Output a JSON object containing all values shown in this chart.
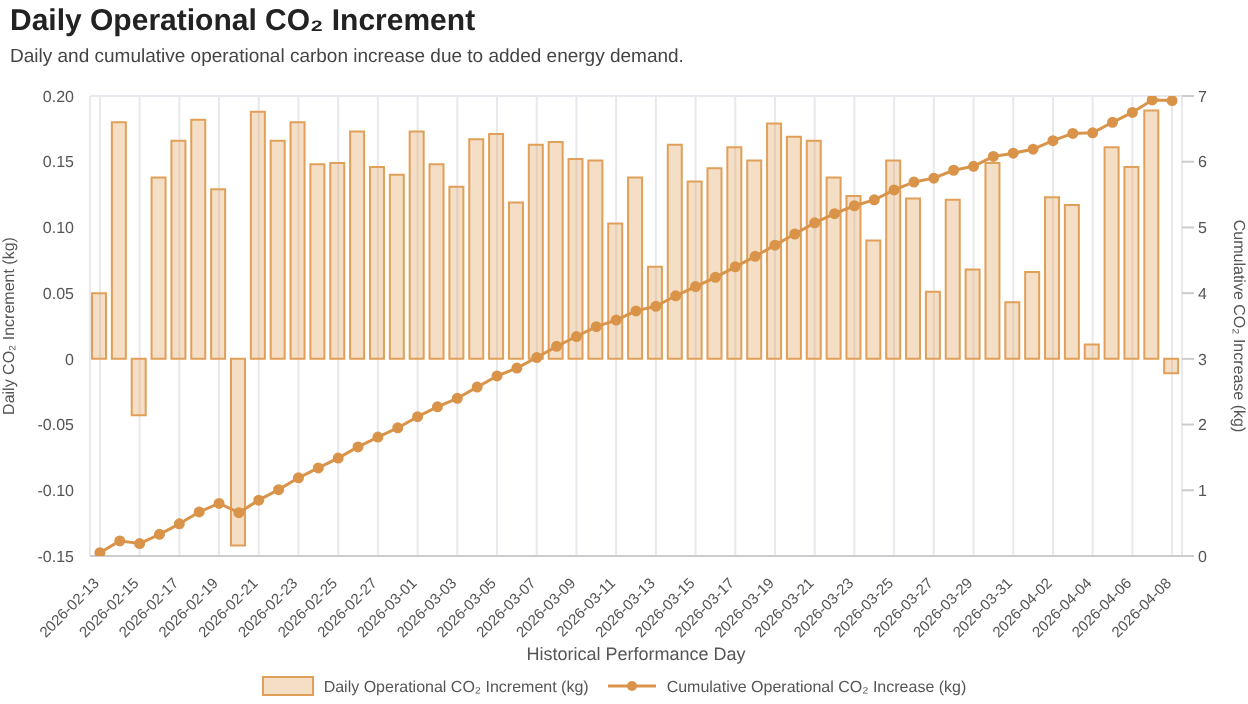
{
  "chart_data": {
    "type": "bar",
    "title": "Daily Operational CO₂ Increment",
    "subtitle": "Daily and cumulative operational carbon increase due to added energy demand.",
    "xlabel": "Historical Performance Day",
    "ylabel": "Daily CO₂ Increment (kg)",
    "y2label": "Cumulative CO₂ Increase (kg)",
    "categories": [
      "2026-02-13",
      null,
      "2026-02-15",
      null,
      "2026-02-17",
      null,
      "2026-02-19",
      null,
      "2026-02-21",
      null,
      "2026-02-23",
      null,
      "2026-02-25",
      null,
      "2026-02-27",
      null,
      "2026-03-01",
      null,
      "2026-03-03",
      null,
      "2026-03-05",
      null,
      "2026-03-07",
      null,
      "2026-03-09",
      null,
      "2026-03-11",
      null,
      "2026-03-13",
      null,
      "2026-03-15",
      null,
      "2026-03-17",
      null,
      "2026-03-19",
      null,
      "2026-03-21",
      null,
      "2026-03-23",
      null,
      "2026-03-25",
      null,
      "2026-03-27",
      null,
      "2026-03-29",
      null,
      "2026-03-31",
      null,
      "2026-04-02",
      null,
      "2026-04-04",
      null,
      "2026-04-06",
      null,
      "2026-04-08"
    ],
    "series": [
      {
        "name": "Daily Operational CO₂ Increment (kg)",
        "color": "#e0a05a",
        "values": [
          0.05,
          0.18,
          -0.043,
          0.138,
          0.166,
          0.182,
          0.129,
          -0.142,
          0.188,
          0.166,
          0.18,
          0.148,
          0.149,
          0.173,
          0.146,
          0.14,
          0.173,
          0.148,
          0.131,
          0.167,
          0.171,
          0.119,
          0.163,
          0.165,
          0.152,
          0.151,
          0.103,
          0.138,
          0.07,
          0.163,
          0.135,
          0.145,
          0.161,
          0.151,
          0.179,
          0.169,
          0.166,
          0.138,
          0.124,
          0.09,
          0.151,
          0.122,
          0.051,
          0.121,
          0.068,
          0.149,
          0.043,
          0.066,
          0.123,
          0.117,
          0.011,
          0.161,
          0.146,
          0.189,
          -0.011
        ]
      },
      {
        "name": "Cumulative Operational CO₂ Increase (kg)",
        "type": "line",
        "axis": "y2",
        "color": "#d9944a",
        "values": [
          0.05,
          0.23,
          0.19,
          0.33,
          0.49,
          0.67,
          0.8,
          0.66,
          0.85,
          1.01,
          1.19,
          1.34,
          1.49,
          1.66,
          1.81,
          1.95,
          2.12,
          2.27,
          2.4,
          2.57,
          2.74,
          2.86,
          3.02,
          3.19,
          3.34,
          3.49,
          3.59,
          3.73,
          3.8,
          3.96,
          4.1,
          4.24,
          4.4,
          4.56,
          4.73,
          4.9,
          5.07,
          5.21,
          5.33,
          5.42,
          5.57,
          5.69,
          5.75,
          5.87,
          5.93,
          6.08,
          6.13,
          6.19,
          6.32,
          6.43,
          6.44,
          6.6,
          6.75,
          6.94,
          6.93
        ]
      }
    ],
    "ylim": [
      -0.15,
      0.2
    ],
    "yticks": [
      {
        "value": -0.15,
        "label": "-0.15"
      },
      {
        "value": -0.1,
        "label": "-0.10"
      },
      -0.05,
      0,
      0.05,
      {
        "value": 0.1,
        "label": "0.10"
      },
      0.15,
      {
        "value": 0.2,
        "label": "0.20"
      }
    ],
    "y2lim": [
      0,
      7
    ],
    "y2ticks": [
      0,
      1,
      2,
      3,
      4,
      5,
      6,
      7
    ],
    "grid": true,
    "legend": "bottom",
    "marker": "circle",
    "line_style": "solid"
  }
}
